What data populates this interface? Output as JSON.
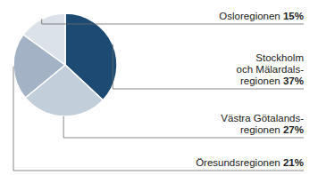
{
  "chart_data": {
    "type": "pie",
    "categories": [
      "Stockholm\noch Mälardals-\nregionen",
      "Västra Götalands-\nregionen",
      "Öresundsregionen",
      "Osloregionen"
    ],
    "values": [
      37,
      27,
      21,
      15
    ],
    "value_labels": [
      "37%",
      "27%",
      "21%",
      "15%"
    ],
    "colors": [
      "#1d4a72",
      "#c3cedb",
      "#a3b3c5",
      "#dbe2ea"
    ],
    "data_labels": true
  }
}
